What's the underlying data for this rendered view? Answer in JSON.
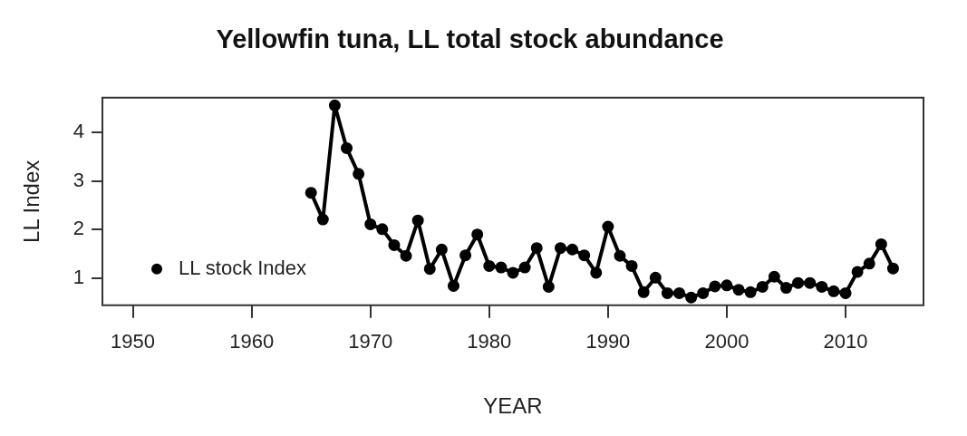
{
  "chart_data": {
    "type": "line",
    "title": "Yellowfin tuna, LL total stock abundance",
    "xlabel": "YEAR",
    "ylabel": "LL Index",
    "x": [
      1965,
      1966,
      1967,
      1968,
      1969,
      1970,
      1971,
      1972,
      1973,
      1974,
      1975,
      1976,
      1977,
      1978,
      1979,
      1980,
      1981,
      1982,
      1983,
      1984,
      1985,
      1986,
      1987,
      1988,
      1989,
      1990,
      1991,
      1992,
      1993,
      1994,
      1995,
      1996,
      1997,
      1998,
      1999,
      2000,
      2001,
      2002,
      2003,
      2004,
      2005,
      2006,
      2007,
      2008,
      2009,
      2010,
      2011,
      2012,
      2013,
      2014
    ],
    "series": [
      {
        "name": "LL stock Index",
        "color": "#000000",
        "values": [
          2.76,
          2.21,
          4.56,
          3.68,
          3.15,
          2.11,
          2.01,
          1.68,
          1.46,
          2.19,
          1.19,
          1.59,
          0.84,
          1.47,
          1.9,
          1.25,
          1.22,
          1.11,
          1.22,
          1.62,
          0.82,
          1.62,
          1.59,
          1.47,
          1.11,
          2.06,
          1.46,
          1.25,
          0.71,
          1.01,
          0.69,
          0.69,
          0.6,
          0.69,
          0.83,
          0.85,
          0.76,
          0.71,
          0.82,
          1.03,
          0.8,
          0.9,
          0.9,
          0.82,
          0.73,
          0.69,
          1.13,
          1.3,
          1.7,
          1.2
        ]
      }
    ],
    "xlim": [
      1947.44,
      2016.56
    ],
    "xticks": [
      1950,
      1960,
      1970,
      1980,
      1990,
      2000,
      2010
    ],
    "ylim": [
      0.44,
      4.72
    ],
    "yticks": [
      1,
      2,
      3,
      4
    ],
    "grid": false,
    "legend": "bottom left",
    "marker": "circle",
    "line_style": "solid"
  }
}
